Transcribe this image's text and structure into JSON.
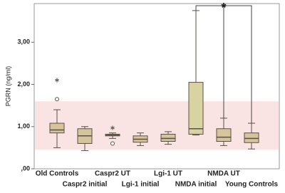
{
  "chart_data": {
    "type": "box",
    "y_label": "PGRN (ng/ml)",
    "annotation": "*",
    "categories": [
      "Old Controls",
      "Caspr2 initial",
      "Caspr2 UT",
      "Lgi-1 initial",
      "Lgi-1 UT",
      "NMDA initial",
      "NMDA UT",
      "Young Controls"
    ],
    "min": [
      0.5,
      0.43,
      0.72,
      0.55,
      0.58,
      0.8,
      0.55,
      0.47
    ],
    "q1": [
      0.85,
      0.6,
      0.78,
      0.63,
      0.65,
      0.82,
      0.65,
      0.62
    ],
    "median": [
      0.92,
      0.78,
      0.8,
      0.7,
      0.72,
      0.95,
      0.75,
      0.72
    ],
    "q3": [
      1.08,
      0.95,
      0.82,
      0.78,
      0.82,
      2.05,
      0.95,
      0.85
    ],
    "max": [
      1.4,
      1.0,
      0.85,
      0.85,
      0.88,
      3.75,
      1.2,
      1.08
    ],
    "outliers": [
      {
        "category": "Old Controls",
        "value": 1.65,
        "marker": "circle"
      },
      {
        "category": "Old Controls",
        "value": 2.1,
        "marker": "star"
      },
      {
        "category": "Caspr2 UT",
        "value": 0.6,
        "marker": "circle"
      },
      {
        "category": "Caspr2 UT",
        "value": 0.97,
        "marker": "star"
      }
    ],
    "reference_band": [
      0.45,
      1.6
    ],
    "color": "#d6c49a",
    "highlight_color": "#d9d3a2",
    "band_color": "#f9e3e3",
    "ylim": [
      0,
      3.9
    ],
    "yticks": [
      {
        "value": 0,
        "label": ",00"
      },
      {
        "value": 1,
        "label": "1,00"
      },
      {
        "value": 2,
        "label": "2,00"
      },
      {
        "value": 3,
        "label": "3,00"
      }
    ]
  }
}
